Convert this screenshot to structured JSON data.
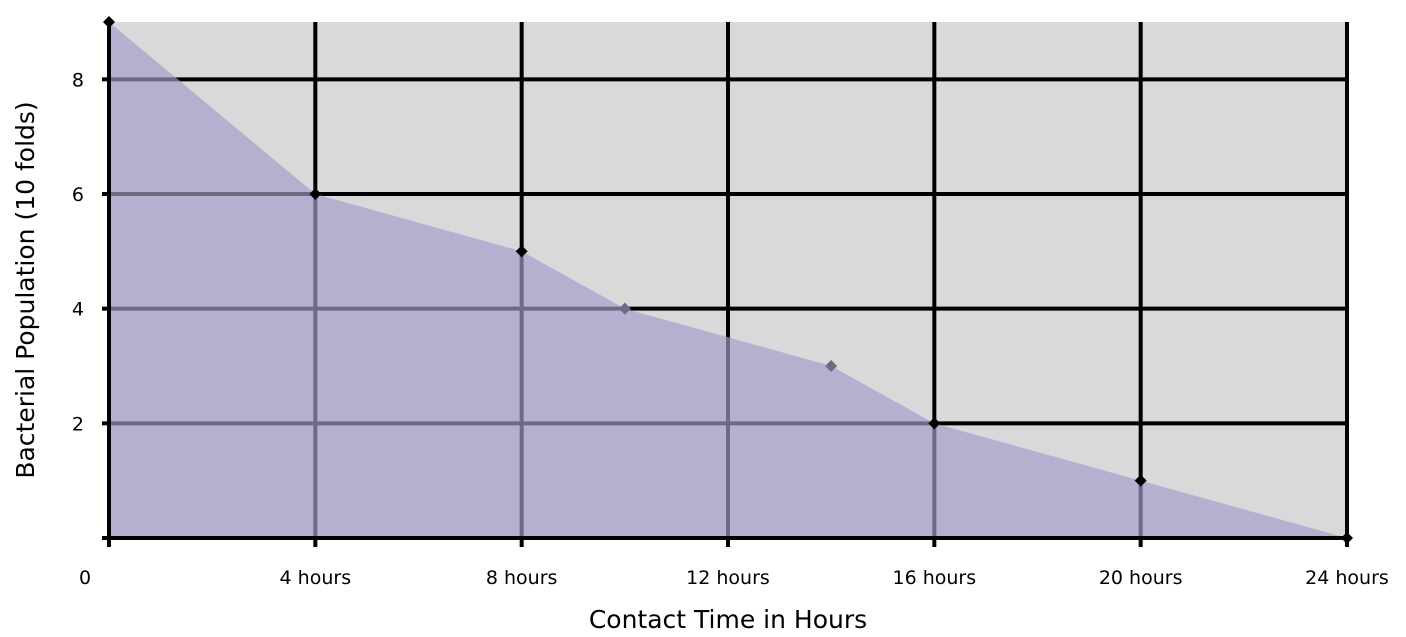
{
  "chart_data": {
    "type": "area",
    "title": "",
    "xlabel": "Contact Time in Hours",
    "ylabel": "Bacterial Population (10 folds)",
    "x": [
      0,
      4,
      8,
      10,
      14,
      16,
      20,
      24
    ],
    "y": [
      9,
      6,
      5,
      4,
      3,
      2,
      1,
      0
    ],
    "xlim": [
      0,
      24
    ],
    "ylim": [
      0,
      9
    ],
    "x_ticks": [
      0,
      4,
      8,
      12,
      16,
      20,
      24
    ],
    "x_tick_labels": [
      "0",
      "4 hours",
      "8 hours",
      "12 hours",
      "16 hours",
      "20 hours",
      "24 hours"
    ],
    "y_ticks": [
      2,
      4,
      6,
      8
    ],
    "y_tick_labels": [
      "2",
      "4",
      "6",
      "8"
    ],
    "grid": true,
    "legend": "none",
    "colors": {
      "plot_background": "#d9d9d9",
      "area_fill": "#b3b1cf",
      "grid": "#000000",
      "grid_under_area": "#6d6b82",
      "marker": "#000000"
    }
  }
}
